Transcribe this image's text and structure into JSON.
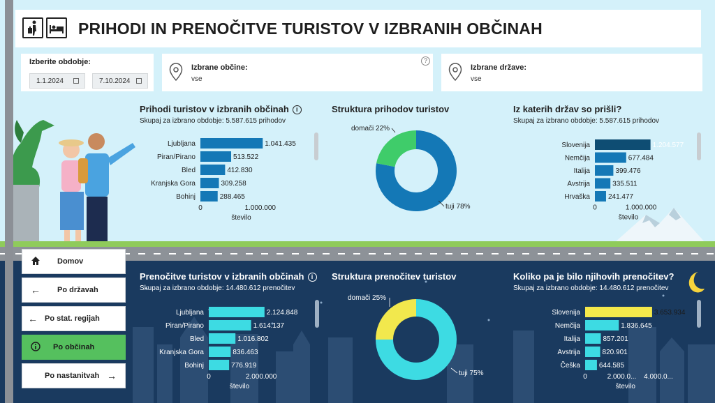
{
  "header": {
    "title": "PRIHODI IN PRENOČITVE TURISTOV V IZBRANIH OBČINAH",
    "icons": [
      "traveler-icon",
      "bed-icon"
    ]
  },
  "filters": {
    "period": {
      "label": "Izberite obdobje:",
      "from": "1.1.2024",
      "to": "7.10.2024"
    },
    "municipalities": {
      "label": "Izbrane občine:",
      "value": "vse",
      "help": "?"
    },
    "countries": {
      "label": "Izbrane države:",
      "value": "vse"
    }
  },
  "arrivals": {
    "title": "Prihodi turistov v izbranih občinah",
    "info": "i",
    "subtitle": "Skupaj za izbrano obdobje: 5.587.615 prihodov",
    "xlabel": "število",
    "tick0": "0",
    "tick1": "1.000.000"
  },
  "arrivals_structure": {
    "title": "Struktura prihodov turistov",
    "label_domestic": "domači 22%",
    "label_foreign": "tuji 78%"
  },
  "arrivals_countries": {
    "title": "Iz katerih držav so prišli?",
    "subtitle": "Skupaj za izbrano obdobje: 5.587.615 prihodov",
    "xlabel": "število",
    "tick0": "0",
    "tick1": "1.000.000"
  },
  "nights": {
    "title": "Prenočitve turistov v izbranih občinah",
    "info": "i",
    "subtitle": "Skupaj za izbrano obdobje: 14.480.612 prenočitev",
    "xlabel": "število",
    "tick0": "0",
    "tick1": "2.000.000"
  },
  "nights_structure": {
    "title": "Struktura prenočitev turistov",
    "label_domestic": "domači 25%",
    "label_foreign": "tuji 75%"
  },
  "nights_countries": {
    "title": "Koliko pa je bilo njihovih prenočitev?",
    "subtitle": "Skupaj za izbrano obdobje: 14.480.612 prenočitev",
    "xlabel": "število",
    "tick0": "0",
    "tick1": "2.000.0...",
    "tick2": "4.000.0..."
  },
  "nav": {
    "home": "Domov",
    "countries": "Po državah",
    "regions": "Po stat. regijah",
    "municipalities": "Po občinah",
    "accommodation": "Po nastanitvah"
  },
  "colors": {
    "arrivals_bar": "#1478b6",
    "arrivals_highlight": "#0e4d73",
    "nights_bar": "#3ddbe3",
    "nights_highlight": "#f5e94b",
    "domestic_arrivals": "#3fcc6a",
    "domestic_nights": "#f2e84d",
    "active_nav": "#55c05e"
  },
  "chart_data": [
    {
      "type": "bar",
      "title": "Prihodi turistov v izbranih občinah",
      "categories": [
        "Ljubljana",
        "Piran/Pirano",
        "Bled",
        "Kranjska Gora",
        "Bohinj"
      ],
      "values": [
        1041435,
        513522,
        412830,
        309258,
        288465
      ],
      "labels": [
        "1.041.435",
        "513.522",
        "412.830",
        "309.258",
        "288.465"
      ],
      "xlim": [
        0,
        1050000
      ],
      "xlabel": "število"
    },
    {
      "type": "pie",
      "title": "Struktura prihodov turistov",
      "categories": [
        "domači",
        "tuji"
      ],
      "values": [
        22,
        78
      ]
    },
    {
      "type": "bar",
      "title": "Iz katerih držav so prišli?",
      "categories": [
        "Slovenija",
        "Nemčija",
        "Italija",
        "Avstrija",
        "Hrvaška"
      ],
      "values": [
        1204577,
        677484,
        399476,
        335511,
        241477
      ],
      "labels": [
        "1.204.577",
        "677.484",
        "399.476",
        "335.511",
        "241.477"
      ],
      "xlim": [
        0,
        1210000
      ],
      "xlabel": "število"
    },
    {
      "type": "bar",
      "title": "Prenočitve turistov v izbranih občinah",
      "categories": [
        "Ljubljana",
        "Piran/Pirano",
        "Bled",
        "Kranjska Gora",
        "Bohinj"
      ],
      "values": [
        2124848,
        1614137,
        1016802,
        836463,
        776919
      ],
      "labels": [
        "2.124.848",
        "1.614.137",
        "1.016.802",
        "836.463",
        "776.919"
      ],
      "xlim": [
        0,
        2130000
      ],
      "xlabel": "število"
    },
    {
      "type": "pie",
      "title": "Struktura prenočitev turistov",
      "categories": [
        "domači",
        "tuji"
      ],
      "values": [
        25,
        75
      ]
    },
    {
      "type": "bar",
      "title": "Koliko pa je bilo njihovih prenočitev?",
      "categories": [
        "Slovenija",
        "Nemčija",
        "Italija",
        "Avstrija",
        "Češka"
      ],
      "values": [
        3653934,
        1836645,
        857201,
        820901,
        644585
      ],
      "labels": [
        "3.653.934",
        "1.836.645",
        "857.201",
        "820.901",
        "644.585"
      ],
      "xlim": [
        0,
        4000000
      ],
      "xlabel": "število"
    }
  ]
}
